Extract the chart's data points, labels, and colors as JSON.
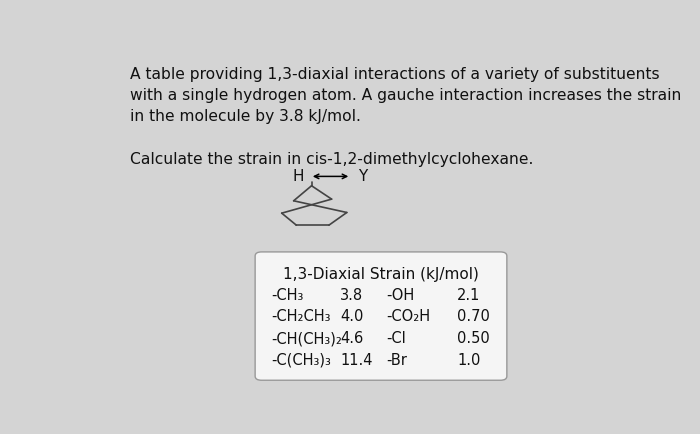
{
  "background_color": "#d4d4d4",
  "text_color": "#111111",
  "paragraph1": "A table providing 1,3-diaxial interactions of a variety of substituents\nwith a single hydrogen atom. A gauche interaction increases the strain\nin the molecule by 3.8 kJ/mol.",
  "paragraph2": "Calculate the strain in cis-1,2-dimethylcyclohexane.",
  "table_title": "1,3-Diaxial Strain (kJ/mol)",
  "table_data": [
    [
      "-CH₃",
      "3.8",
      "-OH",
      "2.1"
    ],
    [
      "-CH₂CH₃",
      "4.0",
      "-CO₂H",
      "0.70"
    ],
    [
      "-CH(CH₃)₂",
      "4.6",
      "-Cl",
      "0.50"
    ],
    [
      "-C(CH₃)₃",
      "11.4",
      "-Br",
      "1.0"
    ]
  ],
  "table_box_color": "#f5f5f5",
  "table_border_color": "#999999",
  "font_size_paragraph": 11.2,
  "font_size_table_title": 11.0,
  "font_size_table_data": 10.5,
  "chair_color": "#444444",
  "chair_lw": 1.2,
  "H_label": "H",
  "Y_label": "Y"
}
